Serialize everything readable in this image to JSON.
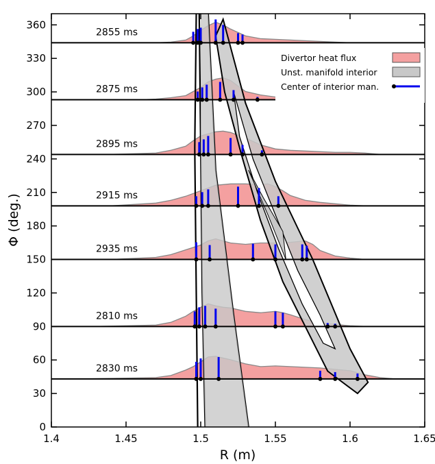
{
  "chart_data": {
    "type": "area",
    "xlabel": "R (m)",
    "ylabel": "Φ (deg.)",
    "xlim": [
      1.4,
      1.65
    ],
    "ylim": [
      0,
      370
    ],
    "x_ticks": [
      "1.4",
      "1.45",
      "1.5",
      "1.55",
      "1.6",
      "1.65"
    ],
    "y_ticks": [
      "0",
      "30",
      "60",
      "90",
      "120",
      "150",
      "180",
      "210",
      "240",
      "270",
      "300",
      "330",
      "360"
    ],
    "grid": false,
    "legend": {
      "position": "top-right",
      "entries": [
        {
          "label": "Divertor heat flux",
          "color": "#f4a0a0"
        },
        {
          "label": "Unst. manifold interior",
          "color": "#c8c8c8"
        },
        {
          "label": "Center of interior man.",
          "color": "#0000ee"
        }
      ]
    },
    "colors": {
      "heat_flux": "#f4a0a0",
      "heat_flux_edge": "#888888",
      "manifold": "#c8c8c8",
      "center": "#0000ee"
    },
    "slices": [
      {
        "time_label": "2830 ms",
        "phi": 43,
        "heat_flux": [
          [
            1.42,
            0
          ],
          [
            1.47,
            2
          ],
          [
            1.48,
            5
          ],
          [
            1.49,
            13
          ],
          [
            1.495,
            18
          ],
          [
            1.5,
            25
          ],
          [
            1.505,
            32
          ],
          [
            1.51,
            33
          ],
          [
            1.52,
            28
          ],
          [
            1.53,
            22
          ],
          [
            1.54,
            18
          ],
          [
            1.55,
            19
          ],
          [
            1.56,
            18
          ],
          [
            1.57,
            17
          ],
          [
            1.58,
            16
          ],
          [
            1.59,
            14
          ],
          [
            1.6,
            12
          ],
          [
            1.61,
            6
          ],
          [
            1.62,
            2
          ],
          [
            1.63,
            0
          ]
        ],
        "centers": [
          [
            1.497,
            25
          ],
          [
            1.5,
            30
          ],
          [
            1.512,
            32
          ],
          [
            1.58,
            12
          ],
          [
            1.59,
            10
          ],
          [
            1.605,
            8
          ]
        ]
      },
      {
        "time_label": "2810 ms",
        "phi": 90,
        "heat_flux": [
          [
            1.43,
            0
          ],
          [
            1.47,
            2
          ],
          [
            1.48,
            6
          ],
          [
            1.49,
            15
          ],
          [
            1.495,
            22
          ],
          [
            1.5,
            28
          ],
          [
            1.505,
            33
          ],
          [
            1.51,
            30
          ],
          [
            1.515,
            28
          ],
          [
            1.52,
            27
          ],
          [
            1.53,
            22
          ],
          [
            1.54,
            20
          ],
          [
            1.55,
            22
          ],
          [
            1.555,
            20
          ],
          [
            1.56,
            17
          ],
          [
            1.57,
            10
          ],
          [
            1.58,
            5
          ],
          [
            1.59,
            3
          ],
          [
            1.6,
            1
          ],
          [
            1.61,
            0
          ]
        ],
        "centers": [
          [
            1.496,
            22
          ],
          [
            1.499,
            28
          ],
          [
            1.503,
            30
          ],
          [
            1.51,
            26
          ],
          [
            1.55,
            22
          ],
          [
            1.555,
            20
          ],
          [
            1.585,
            5
          ],
          [
            1.59,
            4
          ]
        ]
      },
      {
        "time_label": "2935 ms",
        "phi": 150,
        "heat_flux": [
          [
            1.44,
            0
          ],
          [
            1.47,
            3
          ],
          [
            1.48,
            7
          ],
          [
            1.49,
            14
          ],
          [
            1.5,
            21
          ],
          [
            1.505,
            27
          ],
          [
            1.51,
            30
          ],
          [
            1.52,
            24
          ],
          [
            1.53,
            22
          ],
          [
            1.54,
            24
          ],
          [
            1.55,
            24
          ],
          [
            1.56,
            25
          ],
          [
            1.57,
            27
          ],
          [
            1.575,
            22
          ],
          [
            1.58,
            13
          ],
          [
            1.59,
            5
          ],
          [
            1.6,
            2
          ],
          [
            1.61,
            0
          ]
        ],
        "centers": [
          [
            1.497,
            25
          ],
          [
            1.506,
            21
          ],
          [
            1.535,
            23
          ],
          [
            1.55,
            22
          ],
          [
            1.568,
            22
          ],
          [
            1.571,
            20
          ]
        ]
      },
      {
        "time_label": "2915 ms",
        "phi": 198,
        "heat_flux": [
          [
            1.44,
            0
          ],
          [
            1.47,
            4
          ],
          [
            1.48,
            8
          ],
          [
            1.49,
            14
          ],
          [
            1.5,
            22
          ],
          [
            1.505,
            26
          ],
          [
            1.51,
            30
          ],
          [
            1.52,
            32
          ],
          [
            1.53,
            32
          ],
          [
            1.54,
            31
          ],
          [
            1.545,
            32
          ],
          [
            1.55,
            28
          ],
          [
            1.555,
            22
          ],
          [
            1.56,
            15
          ],
          [
            1.57,
            8
          ],
          [
            1.58,
            5
          ],
          [
            1.59,
            3
          ],
          [
            1.6,
            1
          ],
          [
            1.61,
            0
          ]
        ],
        "centers": [
          [
            1.497,
            14
          ],
          [
            1.501,
            20
          ],
          [
            1.505,
            24
          ],
          [
            1.525,
            28
          ],
          [
            1.539,
            26
          ],
          [
            1.552,
            14
          ]
        ]
      },
      {
        "time_label": "2895 ms",
        "phi": 244,
        "heat_flux": [
          [
            1.44,
            0
          ],
          [
            1.47,
            2
          ],
          [
            1.48,
            6
          ],
          [
            1.49,
            12
          ],
          [
            1.495,
            20
          ],
          [
            1.5,
            27
          ],
          [
            1.51,
            33
          ],
          [
            1.515,
            34
          ],
          [
            1.52,
            32
          ],
          [
            1.53,
            24
          ],
          [
            1.54,
            14
          ],
          [
            1.55,
            8
          ],
          [
            1.56,
            6
          ],
          [
            1.57,
            5
          ],
          [
            1.58,
            4
          ],
          [
            1.59,
            3
          ],
          [
            1.6,
            3
          ],
          [
            1.61,
            2
          ],
          [
            1.62,
            0
          ]
        ],
        "centers": [
          [
            1.499,
            18
          ],
          [
            1.502,
            22
          ],
          [
            1.505,
            27
          ],
          [
            1.52,
            24
          ],
          [
            1.528,
            14
          ],
          [
            1.541,
            6
          ]
        ]
      },
      {
        "time_label": "2875 ms",
        "phi": 293,
        "heat_flux": [
          [
            1.46,
            0
          ],
          [
            1.47,
            1
          ],
          [
            1.48,
            3
          ],
          [
            1.49,
            6
          ],
          [
            1.495,
            12
          ],
          [
            1.5,
            18
          ],
          [
            1.505,
            26
          ],
          [
            1.51,
            30
          ],
          [
            1.515,
            32
          ],
          [
            1.52,
            28
          ],
          [
            1.525,
            20
          ],
          [
            1.53,
            12
          ],
          [
            1.54,
            7
          ],
          [
            1.55,
            4
          ],
          [
            1.56,
            2
          ],
          [
            1.57,
            1
          ],
          [
            1.58,
            0
          ]
        ],
        "centers": [
          [
            1.498,
            12
          ],
          [
            1.501,
            18
          ],
          [
            1.504,
            22
          ],
          [
            1.513,
            26
          ],
          [
            1.522,
            14
          ],
          [
            1.538,
            4
          ]
        ]
      },
      {
        "time_label": "2855 ms",
        "phi": 344,
        "heat_flux": [
          [
            1.47,
            0
          ],
          [
            1.48,
            1
          ],
          [
            1.49,
            4
          ],
          [
            1.495,
            10
          ],
          [
            1.5,
            18
          ],
          [
            1.505,
            25
          ],
          [
            1.51,
            30
          ],
          [
            1.515,
            26
          ],
          [
            1.52,
            20
          ],
          [
            1.53,
            10
          ],
          [
            1.54,
            6
          ],
          [
            1.55,
            5
          ],
          [
            1.56,
            4
          ],
          [
            1.57,
            3
          ],
          [
            1.58,
            2
          ],
          [
            1.59,
            1
          ],
          [
            1.6,
            0
          ]
        ],
        "centers": [
          [
            1.495,
            16
          ],
          [
            1.498,
            20
          ],
          [
            1.5,
            22
          ],
          [
            1.51,
            34
          ],
          [
            1.515,
            26
          ],
          [
            1.525,
            14
          ],
          [
            1.528,
            12
          ]
        ]
      }
    ]
  }
}
